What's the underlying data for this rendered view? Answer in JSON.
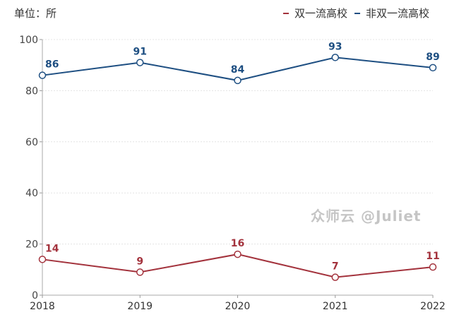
{
  "unit_label": "单位：所",
  "watermark": "众师云 @Juliet",
  "chart_data": {
    "type": "line",
    "categories": [
      "2018",
      "2019",
      "2020",
      "2021",
      "2022"
    ],
    "series": [
      {
        "name": "双一流高校",
        "values": [
          14,
          9,
          16,
          7,
          11
        ],
        "color": "#a3323c"
      },
      {
        "name": "非双一流高校",
        "values": [
          86,
          91,
          84,
          93,
          89
        ],
        "color": "#1e4f82"
      }
    ],
    "ylim": [
      0,
      100
    ],
    "yticks": [
      "0",
      "20",
      "40",
      "60",
      "80",
      "100"
    ],
    "grid": true,
    "legend": "top-right",
    "data_labels": true
  }
}
